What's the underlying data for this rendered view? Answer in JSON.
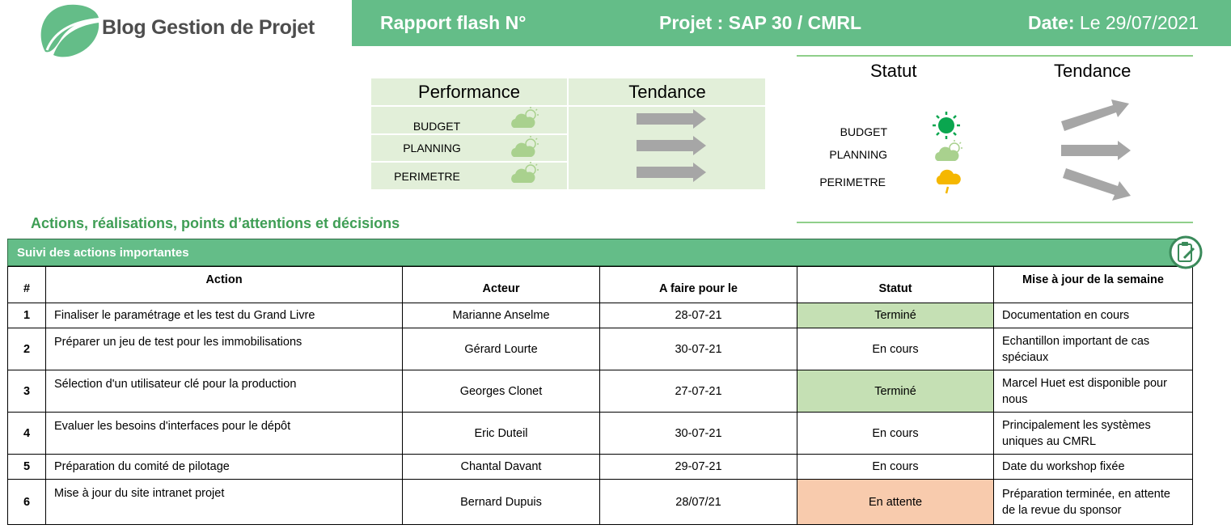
{
  "colors": {
    "header_green": "#64bd88",
    "perf_bg": "#e2efd9",
    "section_title_green": "#3f9e55",
    "status_done": "#c5e0b4",
    "status_waiting": "#f8cbad",
    "sun_green": "#0aa64f",
    "cloud_green": "#a9d18e",
    "cloud_yellow": "#f5b700",
    "arrow_gray": "#a6a6a6"
  },
  "logo": {
    "text": "Blog Gestion de Projet",
    "icon": "leaf-logo-icon"
  },
  "header": {
    "rapport": "Rapport flash N°",
    "projet": "Projet : SAP 30 / CMRL",
    "date_label": "Date:",
    "date_value": "Le 29/07/2021"
  },
  "performance": {
    "col1": "Performance",
    "col2": "Tendance",
    "rows": [
      {
        "label": "BUDGET",
        "weather": "partly-cloudy-icon",
        "trend": "arrow-right-icon"
      },
      {
        "label": "PLANNING",
        "weather": "partly-cloudy-icon",
        "trend": "arrow-right-icon"
      },
      {
        "label": "PERIMETRE",
        "weather": "partly-cloudy-icon",
        "trend": "arrow-right-icon"
      }
    ]
  },
  "status_panel": {
    "col1": "Statut",
    "col2": "Tendance",
    "rows": [
      {
        "label": "BUDGET",
        "weather": "sun-icon",
        "trend": "arrow-up-right-icon"
      },
      {
        "label": "PLANNING",
        "weather": "partly-cloudy-icon",
        "trend": "arrow-right-icon"
      },
      {
        "label": "PERIMETRE",
        "weather": "rain-cloud-icon",
        "trend": "arrow-down-right-icon"
      }
    ]
  },
  "section_title": "Actions, réalisations, points d’attentions et décisions",
  "table": {
    "title": "Suivi des actions importantes",
    "icon": "clipboard-edit-icon",
    "headers": [
      "#",
      "Action",
      "Acteur",
      "A faire pour le",
      "Statut",
      "Mise à jour de la semaine"
    ],
    "rows": [
      {
        "num": "1",
        "action": "Finaliser le paramétrage et les test du Grand Livre",
        "acteur": "Marianne Anselme",
        "date": "28-07-21",
        "statut": "Terminé",
        "maj": "Documentation en cours"
      },
      {
        "num": "2",
        "action": "Préparer un jeu de test pour les immobilisations",
        "acteur": "Gérard Lourte",
        "date": "30-07-21",
        "statut": "En cours",
        "maj": "Echantillon important de cas spéciaux"
      },
      {
        "num": "3",
        "action": "Sélection d'un utilisateur clé pour la production",
        "acteur": "Georges Clonet",
        "date": "27-07-21",
        "statut": "Terminé",
        "maj": "Marcel Huet est disponible pour nous"
      },
      {
        "num": "4",
        "action": "Evaluer les besoins d'interfaces pour le dépôt",
        "acteur": "Eric Duteil",
        "date": "30-07-21",
        "statut": "En cours",
        "maj": "Principalement les systèmes uniques au CMRL"
      },
      {
        "num": "5",
        "action": "Préparation du comité de pilotage",
        "acteur": "Chantal Davant",
        "date": "29-07-21",
        "statut": "En cours",
        "maj": "Date du workshop fixée"
      },
      {
        "num": "6",
        "action": "Mise à jour du site intranet projet",
        "acteur": "Bernard Dupuis",
        "date": "28/07/21",
        "statut": "En attente",
        "maj": "Préparation terminée, en attente de la revue du sponsor"
      }
    ]
  }
}
